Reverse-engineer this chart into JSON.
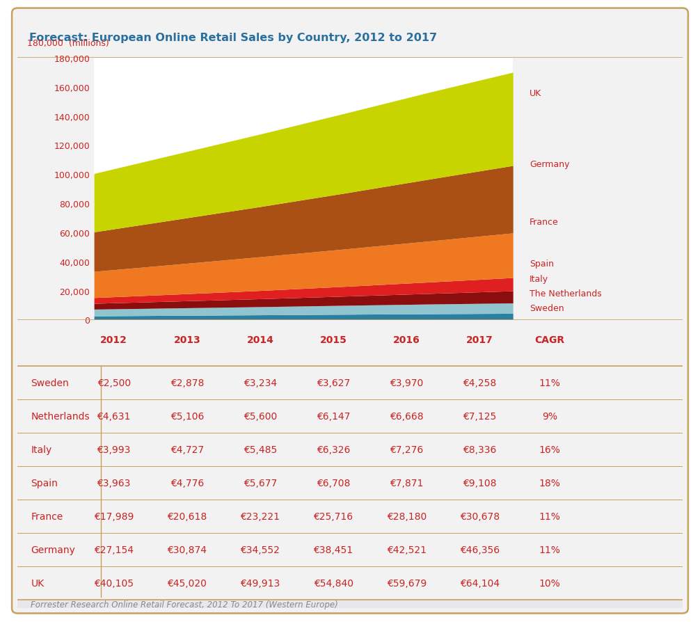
{
  "title": "Forecast: European Online Retail Sales by Country, 2012 to 2017",
  "title_color": "#2970A0",
  "ylabel_text": "180,000  (millions)",
  "ylabel_color": "#CC2222",
  "years": [
    2012,
    2013,
    2014,
    2015,
    2016,
    2017
  ],
  "countries": [
    "Sweden",
    "The Netherlands",
    "Italy",
    "Spain",
    "France",
    "Germany",
    "UK"
  ],
  "colors": [
    "#2B7FA3",
    "#90C4CF",
    "#8B0E0E",
    "#E02020",
    "#F07820",
    "#AA5015",
    "#C8D400"
  ],
  "data": {
    "Sweden": [
      2500,
      2878,
      3234,
      3627,
      3970,
      4258
    ],
    "The Netherlands": [
      4631,
      5106,
      5600,
      6147,
      6668,
      7125
    ],
    "Italy": [
      3993,
      4727,
      5485,
      6326,
      7276,
      8336
    ],
    "Spain": [
      3963,
      4776,
      5677,
      6708,
      7871,
      9108
    ],
    "France": [
      17989,
      20618,
      23221,
      25716,
      28180,
      30678
    ],
    "Germany": [
      27154,
      30874,
      34552,
      38451,
      42521,
      46356
    ],
    "UK": [
      40105,
      45020,
      49913,
      54840,
      59679,
      64104
    ]
  },
  "table_rows": [
    [
      "Sweden",
      "€2,500",
      "€2,878",
      "€3,234",
      "€3,627",
      "€3,970",
      "€4,258",
      "11%"
    ],
    [
      "Netherlands",
      "€4,631",
      "€5,106",
      "€5,600",
      "€6,147",
      "€6,668",
      "€7,125",
      "9%"
    ],
    [
      "Italy",
      "€3,993",
      "€4,727",
      "€5,485",
      "€6,326",
      "€7,276",
      "€8,336",
      "16%"
    ],
    [
      "Spain",
      "€3,963",
      "€4,776",
      "€5,677",
      "€6,708",
      "€7,871",
      "€9,108",
      "18%"
    ],
    [
      "France",
      "€17,989",
      "€20,618",
      "€23,221",
      "€25,716",
      "€28,180",
      "€30,678",
      "11%"
    ],
    [
      "Germany",
      "€27,154",
      "€30,874",
      "€34,552",
      "€38,451",
      "€42,521",
      "€46,356",
      "11%"
    ],
    [
      "UK",
      "€40,105",
      "€45,020",
      "€49,913",
      "€54,840",
      "€59,679",
      "€64,104",
      "10%"
    ]
  ],
  "table_headers": [
    "",
    "2012",
    "2013",
    "2014",
    "2015",
    "2016",
    "2017",
    "CAGR"
  ],
  "footnote": "Forrester Research Online Retail Forecast, 2012 To 2017 (Western Europe)",
  "card_bg": "#F2F2F2",
  "title_bg": "#E8E8EC",
  "chart_bg": "#FFFFFF",
  "border_color": "#C8A060",
  "data_color": "#CC2222",
  "ylim": [
    0,
    180000
  ],
  "yticks": [
    0,
    20000,
    40000,
    60000,
    80000,
    100000,
    120000,
    140000,
    160000,
    180000
  ],
  "legend_labels": [
    [
      "UK",
      0.865
    ],
    [
      "Germany",
      0.595
    ],
    [
      "France",
      0.375
    ],
    [
      "Spain",
      0.215
    ],
    [
      "Italy",
      0.155
    ],
    [
      "The Netherlands",
      0.1
    ],
    [
      "Sweden",
      0.045
    ]
  ]
}
